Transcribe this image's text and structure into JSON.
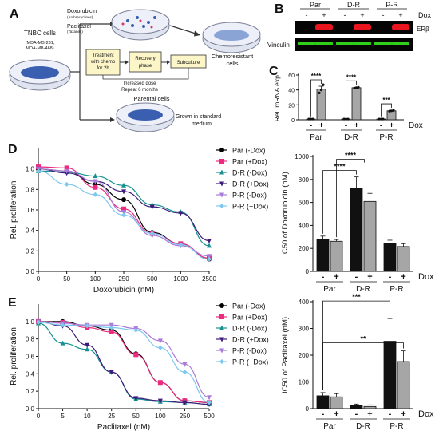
{
  "panel_labels": {
    "a": "A",
    "b": "B",
    "c": "C",
    "d": "D",
    "e": "E"
  },
  "schematic": {
    "tnbc_title": "TNBC cells",
    "tnbc_lines": [
      "(MDA-MB-231,",
      "MDA-MB-468)"
    ],
    "doxorubicin": "Doxorubicin",
    "doxorubicin_sub": "(Anthracyclines)",
    "paclitaxel": "Paclitaxel",
    "paclitaxel_sub": "(Taxanes)",
    "step1": [
      "Treatment",
      "with chemo",
      "for 2h"
    ],
    "step2": [
      "Recovery",
      "phase"
    ],
    "step3": "Subculture",
    "increase": "Increased dose",
    "repeat": "Repeat 6 months",
    "chemoresistant": [
      "Chemoresistant",
      "cells"
    ],
    "parental": "Parental cells",
    "grown": [
      "Grown in standard",
      "medium"
    ]
  },
  "blot": {
    "groups": [
      "Par",
      "D-R",
      "P-R"
    ],
    "signs": [
      "-",
      "+"
    ],
    "dox_label": "Dox",
    "rows": [
      "ERβ",
      "Vinculin"
    ],
    "colors": {
      "erb": "#e8141e",
      "vinculin": "#2fcf1a",
      "background": "#050505"
    }
  },
  "colors": {
    "par_minus": "#000000",
    "par_plus": "#ec2a7f",
    "dr_minus": "#16918f",
    "dr_plus": "#3e1a7a",
    "pr_minus": "#a97bd8",
    "pr_plus": "#7ec8ef",
    "bar_dark": "#111111",
    "bar_grey": "#a6a6a6",
    "bar_white": "#ffffff"
  },
  "chart_data": [
    {
      "id": "C",
      "type": "bar",
      "ylabel": "Rel. mRNA exp.",
      "ylim": [
        0,
        60
      ],
      "yticks": [
        0,
        20,
        40,
        60
      ],
      "groups": [
        "Par",
        "D-R",
        "P-R"
      ],
      "xsigns": [
        "-",
        "+"
      ],
      "dox_label": "Dox",
      "values": [
        [
          1,
          41
        ],
        [
          1,
          43
        ],
        [
          1,
          12
        ]
      ],
      "errors": [
        [
          0.3,
          4
        ],
        [
          0.3,
          0.6
        ],
        [
          0.3,
          0.8
        ]
      ],
      "points": [
        [
          [
            1,
            1,
            1
          ],
          [
            36,
            40,
            47
          ]
        ],
        [
          [
            1,
            1,
            1
          ],
          [
            42.5,
            43,
            43.5
          ]
        ],
        [
          [
            1,
            1,
            1
          ],
          [
            11.5,
            12,
            12.5
          ]
        ]
      ],
      "significance": [
        "****",
        "****",
        "***"
      ]
    },
    {
      "id": "D-curve",
      "type": "line",
      "xlabel": "Doxorubicin (nM)",
      "ylabel": "Rel. proliferation",
      "xticks": [
        0,
        50,
        100,
        250,
        500,
        1000,
        2500
      ],
      "yticks": [
        0,
        0.2,
        0.4,
        0.6,
        0.8,
        1.0
      ],
      "ylim": [
        0,
        1.2
      ],
      "x": [
        0,
        50,
        100,
        250,
        500,
        1000,
        2500
      ],
      "series": [
        {
          "name": "Par (-Dox)",
          "values": [
            1.0,
            0.98,
            0.85,
            0.7,
            0.38,
            0.27,
            0.12
          ]
        },
        {
          "name": "Par (+Dox)",
          "values": [
            1.02,
            1.01,
            0.82,
            0.61,
            0.37,
            0.27,
            0.13
          ]
        },
        {
          "name": "D-R (-Dox)",
          "values": [
            0.98,
            0.97,
            0.93,
            0.84,
            0.65,
            0.58,
            0.25
          ]
        },
        {
          "name": "D-R (+Dox)",
          "values": [
            1.0,
            0.96,
            0.88,
            0.78,
            0.63,
            0.57,
            0.3
          ]
        },
        {
          "name": "P-R (-Dox)",
          "values": [
            1.0,
            0.98,
            0.88,
            0.58,
            0.35,
            0.25,
            0.15
          ]
        },
        {
          "name": "P-R (+Dox)",
          "values": [
            0.98,
            0.85,
            0.75,
            0.55,
            0.37,
            0.26,
            0.12
          ]
        }
      ]
    },
    {
      "id": "D-bar",
      "type": "bar",
      "ylabel": "IC50 of Doxorubicin (nM)",
      "ylim": [
        0,
        1000
      ],
      "yticks": [
        0,
        200,
        400,
        600,
        800,
        1000
      ],
      "groups": [
        "Par",
        "D-R",
        "P-R"
      ],
      "xsigns": [
        "-",
        "+"
      ],
      "dox_label": "Dox",
      "values": [
        [
          282,
          262
        ],
        [
          722,
          609
        ],
        [
          246,
          216
        ]
      ],
      "errors": [
        [
          25,
          15
        ],
        [
          100,
          70
        ],
        [
          25,
          25
        ]
      ],
      "significance": [
        {
          "between": [
            0,
            2
          ],
          "label": "****"
        },
        {
          "between": [
            1,
            2
          ],
          "label": "****"
        }
      ]
    },
    {
      "id": "E-curve",
      "type": "line",
      "xlabel": "Paclitaxel (nM)",
      "ylabel": "Rel. proliferation",
      "xticks": [
        0,
        5,
        10,
        25,
        50,
        100,
        250,
        500
      ],
      "yticks": [
        0,
        0.2,
        0.4,
        0.6,
        0.8,
        1.0
      ],
      "ylim": [
        0,
        1.2
      ],
      "x": [
        0,
        5,
        10,
        25,
        50,
        100,
        250,
        500
      ],
      "series": [
        {
          "name": "Par (-Dox)",
          "values": [
            1.0,
            1.0,
            0.95,
            0.9,
            0.63,
            0.3,
            0.09,
            0.07
          ]
        },
        {
          "name": "Par (+Dox)",
          "values": [
            1.0,
            0.99,
            0.93,
            0.88,
            0.62,
            0.3,
            0.09,
            0.07
          ]
        },
        {
          "name": "D-R (-Dox)",
          "values": [
            0.98,
            0.75,
            0.68,
            0.42,
            0.11,
            0.08,
            0.07,
            0.05
          ]
        },
        {
          "name": "D-R (+Dox)",
          "values": [
            1.0,
            0.95,
            0.73,
            0.42,
            0.12,
            0.09,
            0.07,
            0.05
          ]
        },
        {
          "name": "P-R (-Dox)",
          "values": [
            1.0,
            0.98,
            0.96,
            0.96,
            0.92,
            0.78,
            0.51,
            0.13
          ]
        },
        {
          "name": "P-R (+Dox)",
          "values": [
            0.99,
            0.96,
            0.95,
            0.93,
            0.9,
            0.7,
            0.42,
            0.07
          ]
        }
      ]
    },
    {
      "id": "E-bar",
      "type": "bar",
      "ylabel": "IC50 of Paclitaxel (nM)",
      "ylim": [
        0,
        400
      ],
      "yticks": [
        0,
        100,
        200,
        300,
        400
      ],
      "groups": [
        "Par",
        "D-R",
        "P-R"
      ],
      "xsigns": [
        "-",
        "+"
      ],
      "dox_label": "Dox",
      "values": [
        [
          48,
          44
        ],
        [
          12,
          8
        ],
        [
          252,
          176
        ]
      ],
      "errors": [
        [
          12,
          12
        ],
        [
          5,
          6
        ],
        [
          85,
          40
        ]
      ],
      "significance": [
        {
          "between": [
            0,
            4
          ],
          "label": "***"
        },
        {
          "between": [
            0,
            5
          ],
          "label": "**"
        }
      ]
    }
  ]
}
